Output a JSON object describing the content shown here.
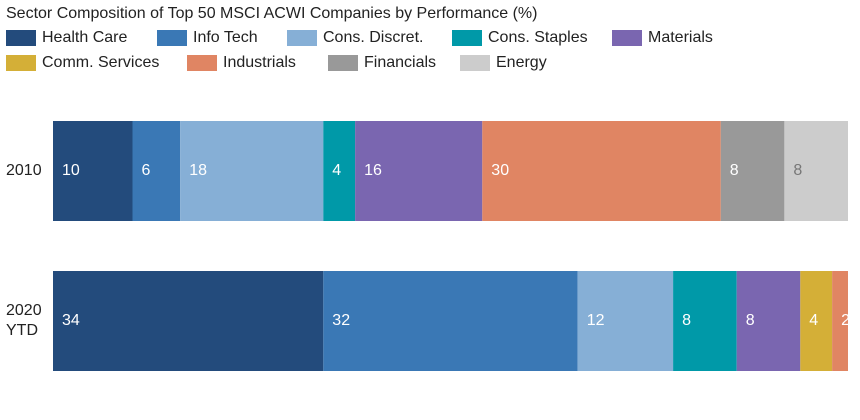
{
  "chart_data": {
    "type": "stacked-bar",
    "orientation": "horizontal",
    "title": "Sector Composition of Top 50 MSCI ACWI Companies by Performance (%)",
    "categories": [
      "2010",
      "2020 YTD"
    ],
    "xlim": [
      0,
      100
    ],
    "series": [
      {
        "name": "Health Care",
        "color": "#234b7c",
        "values": [
          10,
          34
        ]
      },
      {
        "name": "Info Tech",
        "color": "#3a78b5",
        "values": [
          6,
          32
        ]
      },
      {
        "name": "Cons. Discret.",
        "color": "#86afd6",
        "values": [
          18,
          12
        ]
      },
      {
        "name": "Cons. Staples",
        "color": "#0099a8",
        "values": [
          4,
          8
        ]
      },
      {
        "name": "Materials",
        "color": "#7a66b0",
        "values": [
          16,
          8
        ]
      },
      {
        "name": "Comm. Services",
        "color": "#d4af37",
        "values": [
          null,
          4
        ]
      },
      {
        "name": "Industrials",
        "color": "#e08563",
        "values": [
          30,
          2
        ]
      },
      {
        "name": "Financials",
        "color": "#999999",
        "values": [
          8,
          null
        ]
      },
      {
        "name": "Energy",
        "color": "#cccccc",
        "values": [
          8,
          null
        ]
      }
    ]
  }
}
